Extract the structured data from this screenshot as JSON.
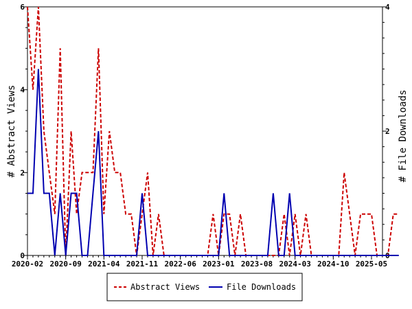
{
  "chart_data": {
    "type": "line",
    "x_tick_labels": [
      "2020-02",
      "2020-09",
      "2021-04",
      "2021-11",
      "2022-06",
      "2023-01",
      "2023-08",
      "2024-03",
      "2024-10",
      "2025-05"
    ],
    "y_left": {
      "label": "# Abstract Views",
      "ylim": [
        0,
        6
      ],
      "ticks": [
        "0",
        "2",
        "4",
        "6"
      ]
    },
    "y_right": {
      "label": "# File Downloads",
      "ylim": [
        0,
        4
      ],
      "ticks": [
        "0",
        "2",
        "4"
      ]
    },
    "legend_position": "bottom-center",
    "series": [
      {
        "name": "Abstract Views",
        "axis": "left",
        "color": "#cc0000",
        "style": "dashed",
        "x": [
          "2020-02",
          "2020-03",
          "2020-04",
          "2020-05",
          "2020-06",
          "2020-07",
          "2020-08",
          "2020-09",
          "2020-10",
          "2020-11",
          "2020-12",
          "2021-01",
          "2021-02",
          "2021-03",
          "2021-04",
          "2021-05",
          "2021-06",
          "2021-07",
          "2021-08",
          "2021-09",
          "2021-10",
          "2021-11",
          "2021-12",
          "2022-01",
          "2022-02",
          "2022-03",
          "2022-04",
          "2022-05",
          "2022-06",
          "2022-07",
          "2022-08",
          "2022-09",
          "2022-10",
          "2022-11",
          "2022-12",
          "2023-01",
          "2023-02",
          "2023-03",
          "2023-04",
          "2023-05",
          "2023-06",
          "2023-07",
          "2023-08",
          "2023-09",
          "2023-10",
          "2023-11",
          "2023-12",
          "2024-01",
          "2024-02",
          "2024-03",
          "2024-04",
          "2024-05",
          "2024-06",
          "2024-07",
          "2024-08",
          "2024-09",
          "2024-10",
          "2024-11",
          "2024-12",
          "2025-01",
          "2025-02",
          "2025-03",
          "2025-04",
          "2025-05",
          "2025-06",
          "2025-07",
          "2025-08",
          "2025-09",
          "2025-10"
        ],
        "values": [
          6,
          4,
          6,
          3,
          2,
          1,
          5,
          0,
          3,
          1,
          2,
          2,
          2,
          5,
          1,
          3,
          2,
          2,
          1,
          1,
          0,
          1,
          2,
          0,
          1,
          0,
          0,
          0,
          0,
          0,
          0,
          0,
          0,
          0,
          1,
          0,
          1,
          1,
          0,
          1,
          0,
          0,
          0,
          0,
          0,
          0,
          0,
          1,
          0,
          1,
          0,
          1,
          0,
          0,
          0,
          0,
          0,
          0,
          2,
          1,
          0,
          1,
          1,
          1,
          0,
          0,
          0,
          1,
          1
        ]
      },
      {
        "name": "File Downloads",
        "axis": "right",
        "color": "#0000b0",
        "style": "solid",
        "x": [
          "2020-02",
          "2020-03",
          "2020-04",
          "2020-05",
          "2020-06",
          "2020-07",
          "2020-08",
          "2020-09",
          "2020-10",
          "2020-11",
          "2020-12",
          "2021-01",
          "2021-02",
          "2021-03",
          "2021-04",
          "2021-05",
          "2021-06",
          "2021-07",
          "2021-08",
          "2021-09",
          "2021-10",
          "2021-11",
          "2021-12",
          "2022-01",
          "2022-02",
          "2022-03",
          "2022-04",
          "2022-05",
          "2022-06",
          "2022-07",
          "2022-08",
          "2022-09",
          "2022-10",
          "2022-11",
          "2022-12",
          "2023-01",
          "2023-02",
          "2023-03",
          "2023-04",
          "2023-05",
          "2023-06",
          "2023-07",
          "2023-08",
          "2023-09",
          "2023-10",
          "2023-11",
          "2023-12",
          "2024-01",
          "2024-02",
          "2024-03",
          "2024-04",
          "2024-05",
          "2024-06",
          "2024-07",
          "2024-08",
          "2024-09",
          "2024-10",
          "2024-11",
          "2024-12",
          "2025-01",
          "2025-02",
          "2025-03",
          "2025-04",
          "2025-05",
          "2025-06",
          "2025-07",
          "2025-08",
          "2025-09",
          "2025-10"
        ],
        "values": [
          1,
          1,
          3,
          1,
          1,
          0,
          1,
          0,
          1,
          1,
          0,
          0,
          1,
          2,
          0,
          0,
          0,
          0,
          0,
          0,
          0,
          1,
          0,
          0,
          0,
          0,
          0,
          0,
          0,
          0,
          0,
          0,
          0,
          0,
          0,
          0,
          1,
          0,
          0,
          0,
          0,
          0,
          0,
          0,
          0,
          1,
          0,
          0,
          1,
          0,
          0,
          0,
          0,
          0,
          0,
          0,
          0,
          0,
          0,
          0,
          0,
          0,
          0,
          0,
          0,
          0,
          0,
          0,
          0
        ]
      }
    ]
  }
}
